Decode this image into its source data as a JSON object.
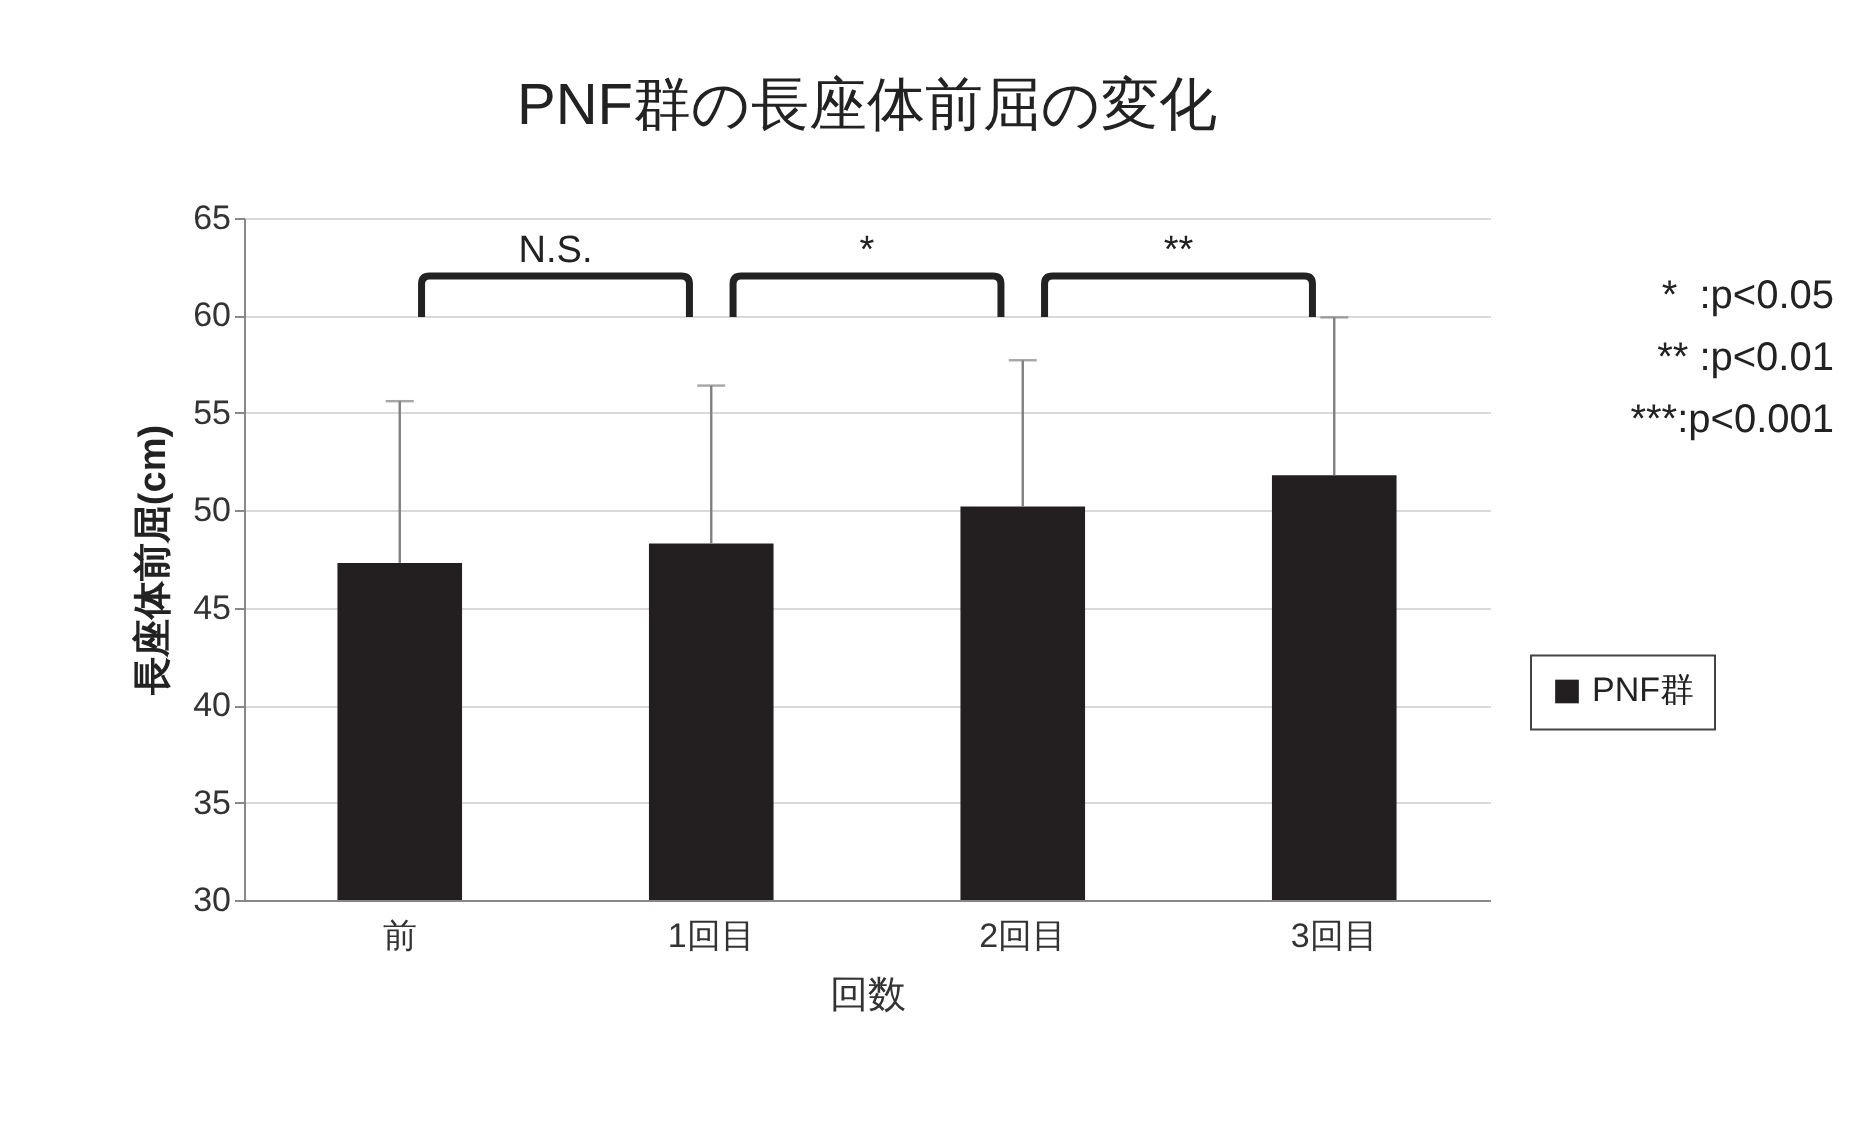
{
  "chart_data": {
    "type": "bar",
    "title": "PNF群の長座体前屈の変化",
    "xlabel": "回数",
    "ylabel": "長座体前屈(cm)",
    "categories": [
      "前",
      "1回目",
      "2回目",
      "3回目"
    ],
    "series": [
      {
        "name": "PNF群",
        "color": "#231f20",
        "values": [
          47.3,
          48.3,
          50.2,
          51.8
        ],
        "errors": [
          [
            47.3,
            55.6
          ],
          [
            48.3,
            56.4
          ],
          [
            50.2,
            57.7
          ],
          [
            51.8,
            59.9
          ]
        ]
      }
    ],
    "ylim": [
      30,
      65
    ],
    "yticks": [
      30,
      35,
      40,
      45,
      50,
      55,
      60,
      65
    ],
    "grid": "y",
    "legend": "right",
    "annotations": [
      "N.S.",
      "*",
      "**",
      "*  :p<0.05",
      "** :p<0.01",
      "***:p<0.001"
    ]
  }
}
